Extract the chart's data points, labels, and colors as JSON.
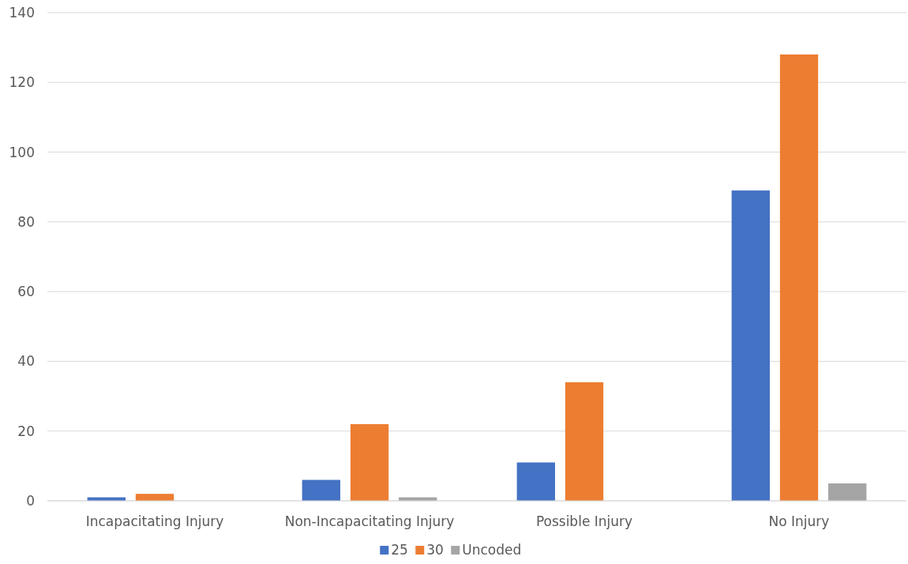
{
  "chart_data": {
    "type": "bar",
    "categories": [
      "Incapacitating Injury",
      "Non-Incapacitating Injury",
      "Possible Injury",
      "No Injury"
    ],
    "series": [
      {
        "name": "25",
        "color": "#4472c4",
        "values": [
          1,
          6,
          11,
          89
        ]
      },
      {
        "name": "30",
        "color": "#ed7d31",
        "values": [
          2,
          22,
          34,
          128
        ]
      },
      {
        "name": "Uncoded",
        "color": "#a5a5a5",
        "values": [
          0,
          1,
          0,
          5
        ]
      }
    ],
    "ylim": [
      0,
      140
    ],
    "yticks": [
      0,
      20,
      40,
      60,
      80,
      100,
      120,
      140
    ],
    "grid": "y",
    "legend": "bottom"
  }
}
